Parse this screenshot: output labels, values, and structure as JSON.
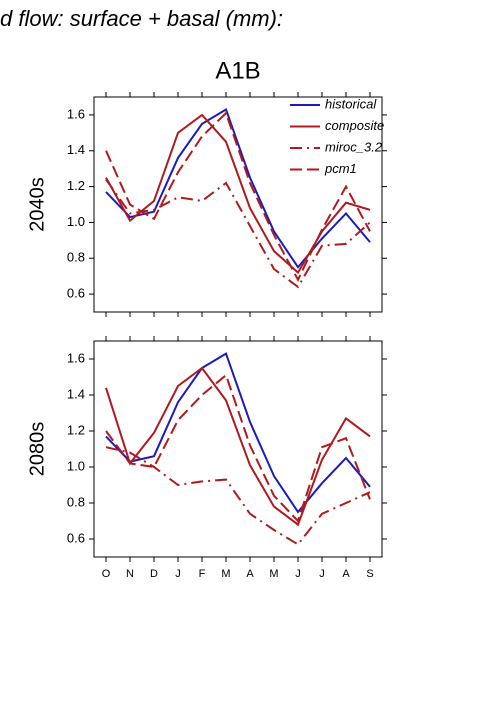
{
  "chart_data": [
    {
      "type": "line",
      "title": "d flow: surface + basal (mm):",
      "subtitle": "A1B",
      "ylabel": "2040s",
      "ylim": [
        0.5,
        1.7
      ],
      "yticks": [
        0.6,
        0.8,
        {
          "value": 1,
          "label": "1.0"
        },
        1.2,
        1.4,
        1.6
      ],
      "legend": "upper right",
      "series": [
        {
          "name": "historical",
          "color": "#1c1cbd",
          "linestyle": "solid",
          "values": [
            1.17,
            1.03,
            1.06,
            1.36,
            1.55,
            1.63,
            1.25,
            0.95,
            0.75,
            0.91,
            1.05,
            0.89
          ]
        },
        {
          "name": "composite",
          "color": "#b0191e",
          "linestyle": "solid",
          "values": [
            1.25,
            1.01,
            1.12,
            1.5,
            1.6,
            1.45,
            1.08,
            0.84,
            0.72,
            0.95,
            1.11,
            1.07
          ]
        },
        {
          "name": "miroc_3.2",
          "color": "#b0191e",
          "linestyle": "dashdot",
          "values": [
            1.24,
            1.05,
            1.07,
            1.14,
            1.12,
            1.22,
            0.98,
            0.74,
            0.64,
            0.87,
            0.88,
            1.0
          ]
        },
        {
          "name": "pcm1",
          "color": "#b0191e",
          "linestyle": "dashed",
          "values": [
            1.4,
            1.1,
            1.02,
            1.28,
            1.48,
            1.61,
            1.22,
            0.93,
            0.68,
            0.96,
            1.2,
            0.95
          ]
        }
      ]
    },
    {
      "type": "line",
      "ylabel": "2080s",
      "categories": [
        "O",
        "N",
        "D",
        "J",
        "F",
        "M",
        "A",
        "M",
        "J",
        "J",
        "A",
        "S"
      ],
      "ylim": [
        0.5,
        1.7
      ],
      "yticks": [
        0.6,
        0.8,
        {
          "value": 1,
          "label": "1.0"
        },
        1.2,
        1.4,
        1.6
      ],
      "series": [
        {
          "color": "#1c1cbd",
          "linestyle": "solid",
          "values": [
            1.17,
            1.03,
            1.06,
            1.36,
            1.55,
            1.63,
            1.25,
            0.95,
            0.75,
            0.91,
            1.05,
            0.89
          ]
        },
        {
          "color": "#b0191e",
          "linestyle": "solid",
          "values": [
            1.44,
            1.02,
            1.19,
            1.45,
            1.55,
            1.37,
            1.01,
            0.78,
            0.68,
            1.04,
            1.27,
            1.17
          ]
        },
        {
          "color": "#b0191e",
          "linestyle": "dashdot",
          "values": [
            1.11,
            1.08,
            1.0,
            0.9,
            0.92,
            0.93,
            0.74,
            0.65,
            0.57,
            0.74,
            0.8,
            0.86
          ]
        },
        {
          "color": "#b0191e",
          "linestyle": "dashed",
          "values": [
            1.2,
            1.02,
            1.0,
            1.26,
            1.4,
            1.51,
            1.12,
            0.84,
            0.7,
            1.11,
            1.16,
            0.82
          ]
        }
      ]
    }
  ]
}
